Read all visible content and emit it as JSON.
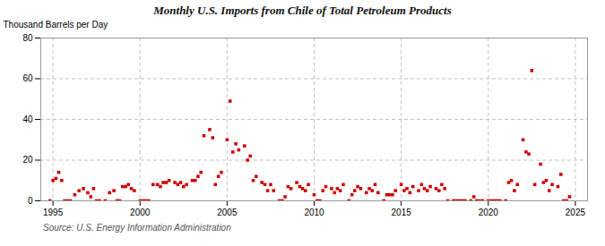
{
  "chart_data": {
    "type": "scatter",
    "title": "Monthly U.S. Imports from Chile of Total Petroleum Products",
    "ylabel": "Thousand Barrels per Day",
    "source": "Source: U.S. Energy Information Administration",
    "color": "#CC0000",
    "marker": "square",
    "grid": true,
    "xlim": [
      1994.3,
      2025.7
    ],
    "ylim": [
      0,
      80
    ],
    "xticks": [
      1995,
      2000,
      2005,
      2010,
      2015,
      2020,
      2025
    ],
    "yticks": [
      0,
      20,
      40,
      60,
      80
    ],
    "x": [
      1994.83,
      1995.0,
      1995.17,
      1995.33,
      1995.5,
      1995.67,
      1995.83,
      1996.0,
      1996.25,
      1996.5,
      1996.75,
      1997.0,
      1997.17,
      1997.33,
      1997.5,
      1997.67,
      1998.0,
      1998.25,
      1998.5,
      1998.67,
      1998.83,
      1999.0,
      1999.17,
      1999.33,
      1999.5,
      1999.67,
      2000.0,
      2000.17,
      2000.33,
      2000.5,
      2000.75,
      2001.0,
      2001.17,
      2001.33,
      2001.5,
      2001.67,
      2002.0,
      2002.17,
      2002.33,
      2002.5,
      2002.67,
      2003.0,
      2003.17,
      2003.33,
      2003.5,
      2003.67,
      2004.0,
      2004.17,
      2004.33,
      2004.5,
      2004.67,
      2005.0,
      2005.17,
      2005.33,
      2005.5,
      2005.67,
      2006.0,
      2006.17,
      2006.33,
      2006.5,
      2006.67,
      2007.0,
      2007.17,
      2007.33,
      2007.5,
      2007.67,
      2008.0,
      2008.17,
      2008.33,
      2008.5,
      2008.67,
      2009.0,
      2009.17,
      2009.33,
      2009.5,
      2009.67,
      2010.0,
      2010.17,
      2010.33,
      2010.5,
      2010.67,
      2011.0,
      2011.17,
      2011.33,
      2011.5,
      2011.67,
      2012.0,
      2012.17,
      2012.33,
      2012.5,
      2012.67,
      2013.0,
      2013.17,
      2013.33,
      2013.5,
      2013.67,
      2014.0,
      2014.17,
      2014.33,
      2014.5,
      2014.67,
      2015.0,
      2015.17,
      2015.33,
      2015.5,
      2015.67,
      2016.0,
      2016.17,
      2016.33,
      2016.5,
      2016.67,
      2017.0,
      2017.17,
      2017.33,
      2017.5,
      2017.67,
      2018.0,
      2018.17,
      2018.33,
      2018.5,
      2018.67,
      2019.0,
      2019.17,
      2019.33,
      2019.5,
      2019.67,
      2020.0,
      2020.17,
      2020.33,
      2020.5,
      2020.67,
      2021.0,
      2021.17,
      2021.33,
      2021.5,
      2021.67,
      2022.0,
      2022.17,
      2022.33,
      2022.5,
      2022.67,
      2023.0,
      2023.17,
      2023.33,
      2023.5,
      2023.67,
      2024.0,
      2024.17,
      2024.33,
      2024.5,
      2024.67
    ],
    "values": [
      0,
      10,
      11,
      14,
      10,
      0,
      0,
      0,
      3,
      5,
      6,
      4,
      2,
      6,
      0,
      0,
      0,
      4,
      5,
      0,
      0,
      7,
      7,
      8,
      6,
      5,
      0,
      0,
      0,
      0,
      8,
      8,
      7,
      9,
      9,
      10,
      9,
      8,
      9,
      7,
      8,
      10,
      10,
      12,
      14,
      32,
      35,
      31,
      8,
      12,
      14,
      30,
      49,
      24,
      28,
      25,
      27,
      20,
      22,
      10,
      12,
      9,
      8,
      5,
      8,
      5,
      0,
      0,
      2,
      7,
      6,
      9,
      7,
      6,
      5,
      8,
      3,
      0,
      0,
      5,
      7,
      6,
      4,
      6,
      5,
      8,
      0,
      3,
      5,
      7,
      6,
      4,
      6,
      5,
      8,
      4,
      0,
      3,
      3,
      3,
      5,
      8,
      5,
      6,
      4,
      7,
      5,
      8,
      6,
      5,
      7,
      6,
      5,
      8,
      6,
      0,
      0,
      0,
      0,
      0,
      0,
      0,
      2,
      0,
      0,
      0,
      0,
      0,
      0,
      0,
      0,
      0,
      9,
      10,
      5,
      8,
      30,
      24,
      23,
      64,
      8,
      18,
      9,
      10,
      5,
      8,
      7,
      13,
      0,
      0,
      2
    ]
  }
}
